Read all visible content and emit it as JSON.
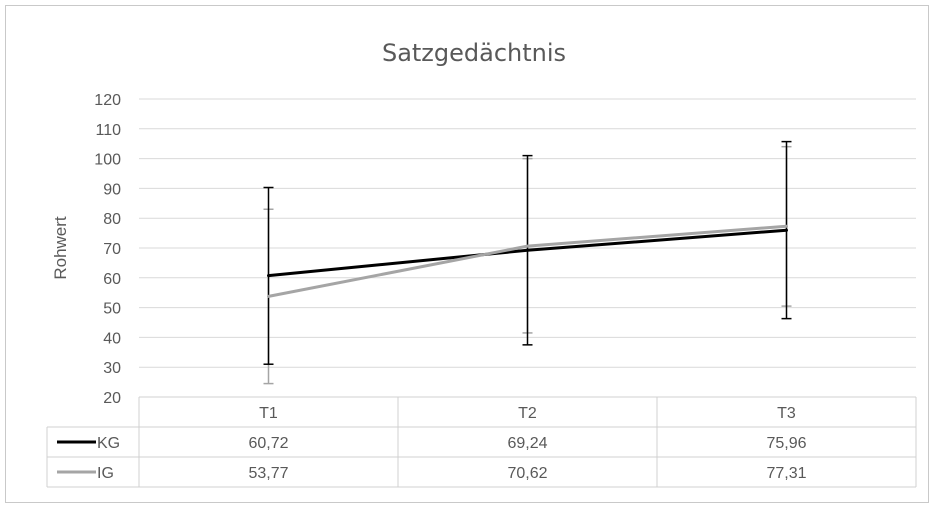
{
  "chart_data": {
    "type": "line",
    "title": "Satzgedächtnis",
    "ylabel": "Rohwert",
    "xlabel": "",
    "categories": [
      "T1",
      "T2",
      "T3"
    ],
    "ylim": [
      20,
      120
    ],
    "yticks": [
      20,
      30,
      40,
      50,
      60,
      70,
      80,
      90,
      100,
      110,
      120
    ],
    "grid": true,
    "legend": "data-table",
    "series": [
      {
        "name": "KG",
        "values": [
          "60,72",
          "69,24",
          "75,96"
        ],
        "numeric": [
          60.72,
          69.24,
          75.96
        ],
        "error_low": [
          31,
          37.5,
          46.3
        ],
        "error_high": [
          90.3,
          101,
          105.7
        ],
        "color": "#000000"
      },
      {
        "name": "IG",
        "values": [
          "53,77",
          "70,62",
          "77,31"
        ],
        "numeric": [
          53.77,
          70.62,
          77.31
        ],
        "error_low": [
          24.5,
          41.5,
          50.5
        ],
        "error_high": [
          83,
          100,
          104
        ],
        "color": "#a5a5a5"
      }
    ]
  }
}
